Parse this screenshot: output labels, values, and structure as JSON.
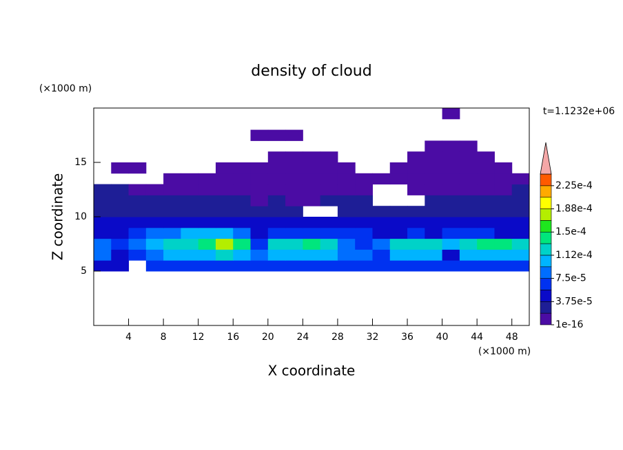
{
  "chart_data": {
    "type": "contour",
    "title": "density of cloud",
    "x_label": "X coordinate",
    "y_label": "Z coordinate",
    "x_unit": "(×1000 m)",
    "y_unit": "(×1000 m)",
    "time_label": "t=1.1232e+06",
    "xlim": [
      0,
      50
    ],
    "xticks": [
      4,
      8,
      12,
      16,
      20,
      24,
      28,
      32,
      36,
      40,
      44,
      48
    ],
    "ylim": [
      0,
      20
    ],
    "yticks": [
      5,
      10,
      15
    ],
    "x": [
      1,
      3,
      5,
      7,
      9,
      11,
      13,
      15,
      17,
      19,
      21,
      23,
      25,
      27,
      29,
      31,
      33,
      35,
      37,
      39,
      41,
      43,
      45,
      47,
      49
    ],
    "y": [
      4.5,
      5.5,
      6.5,
      7.5,
      8.5,
      9.5,
      10.5,
      11.5,
      12.5,
      13.5,
      14.5,
      15.5,
      16.5,
      17.5,
      18.5,
      19.5
    ],
    "z": [
      [
        null,
        null,
        null,
        null,
        null,
        null,
        null,
        null,
        null,
        null,
        null,
        null,
        null,
        null,
        null,
        null,
        null,
        null,
        null,
        null,
        null,
        null,
        null,
        null,
        null
      ],
      [
        5e-05,
        5e-05,
        null,
        6e-05,
        7e-05,
        7e-05,
        7e-05,
        7e-05,
        7e-05,
        7e-05,
        7e-05,
        7e-05,
        7e-05,
        7e-05,
        7e-05,
        6e-05,
        6e-05,
        7e-05,
        7e-05,
        6e-05,
        7e-05,
        7e-05,
        7e-05,
        7e-05,
        7e-05
      ],
      [
        8e-05,
        5e-05,
        6e-05,
        9e-05,
        0.0001,
        0.00011,
        0.00011,
        0.00012,
        0.00011,
        8e-05,
        0.0001,
        0.00011,
        0.00011,
        0.0001,
        9e-05,
        8e-05,
        7e-05,
        0.0001,
        0.00011,
        0.0001,
        5e-05,
        0.0001,
        0.00011,
        0.00011,
        0.00011
      ],
      [
        9e-05,
        7e-05,
        9e-05,
        0.00011,
        0.00012,
        0.00013,
        0.00014,
        0.00017,
        0.00014,
        6e-05,
        0.00012,
        0.00013,
        0.00014,
        0.00012,
        8e-05,
        7e-05,
        8e-05,
        0.00012,
        0.00013,
        0.00012,
        0.00011,
        0.00013,
        0.00014,
        0.00014,
        0.00013
      ],
      [
        5e-05,
        5e-05,
        6e-05,
        8e-05,
        9e-05,
        0.0001,
        0.00011,
        0.0001,
        8e-05,
        5e-05,
        6e-05,
        7e-05,
        7e-05,
        6e-05,
        6e-05,
        6e-05,
        5e-05,
        5e-05,
        6e-05,
        5e-05,
        6e-05,
        6e-05,
        6e-05,
        5e-05,
        5e-05
      ],
      [
        4e-05,
        4e-05,
        4e-05,
        5e-05,
        5e-05,
        4e-05,
        5e-05,
        4e-05,
        4e-05,
        4e-05,
        4e-05,
        4e-05,
        4e-05,
        4e-05,
        4e-05,
        5e-05,
        4e-05,
        4e-05,
        4e-05,
        4e-05,
        4e-05,
        4e-05,
        4e-05,
        4e-05,
        4e-05
      ],
      [
        3e-05,
        3e-05,
        3e-05,
        3e-05,
        2e-05,
        3e-05,
        2e-05,
        3e-05,
        3e-05,
        2e-05,
        2e-05,
        3e-05,
        null,
        null,
        3e-05,
        3e-05,
        3e-05,
        3e-05,
        2e-05,
        2e-05,
        2e-05,
        3e-05,
        3e-05,
        3e-05,
        3e-05
      ],
      [
        2e-05,
        3e-05,
        2e-05,
        2e-05,
        2e-05,
        2e-05,
        2e-05,
        2e-05,
        2e-05,
        1e-05,
        2e-05,
        1e-05,
        1e-05,
        2e-05,
        2e-05,
        2e-05,
        null,
        null,
        null,
        2e-05,
        2e-05,
        2e-05,
        2e-05,
        3e-05,
        3e-05
      ],
      [
        2e-05,
        2e-05,
        1e-05,
        1e-05,
        1e-05,
        1e-05,
        1e-05,
        1e-05,
        1e-05,
        1e-05,
        1e-05,
        1e-05,
        1e-05,
        1e-05,
        1e-05,
        1e-05,
        null,
        null,
        1e-05,
        1e-05,
        1e-05,
        1e-05,
        1e-05,
        1e-05,
        2e-05
      ],
      [
        null,
        null,
        null,
        null,
        5e-06,
        5e-06,
        1e-05,
        1e-05,
        1e-05,
        1e-05,
        1e-05,
        1e-05,
        1e-05,
        1e-05,
        1e-05,
        5e-06,
        5e-06,
        5e-06,
        5e-06,
        1e-05,
        1e-05,
        1e-05,
        1e-05,
        5e-06,
        5e-06
      ],
      [
        null,
        5e-06,
        5e-06,
        null,
        null,
        null,
        null,
        5e-06,
        5e-06,
        5e-06,
        5e-06,
        5e-06,
        5e-06,
        5e-06,
        5e-06,
        null,
        null,
        5e-06,
        5e-06,
        5e-06,
        5e-06,
        5e-06,
        5e-06,
        5e-06,
        null
      ],
      [
        null,
        null,
        null,
        null,
        null,
        null,
        null,
        null,
        null,
        null,
        5e-06,
        5e-06,
        5e-06,
        5e-06,
        null,
        null,
        null,
        null,
        5e-06,
        5e-06,
        5e-06,
        5e-06,
        5e-06,
        null,
        null
      ],
      [
        null,
        null,
        null,
        null,
        null,
        null,
        null,
        null,
        null,
        null,
        null,
        null,
        null,
        null,
        null,
        null,
        null,
        null,
        null,
        5e-06,
        5e-06,
        5e-06,
        null,
        null,
        null
      ],
      [
        null,
        null,
        null,
        null,
        null,
        null,
        null,
        null,
        null,
        5e-06,
        5e-06,
        5e-06,
        null,
        null,
        null,
        null,
        null,
        null,
        null,
        null,
        null,
        null,
        null,
        null,
        null
      ],
      [
        null,
        null,
        null,
        null,
        null,
        null,
        null,
        null,
        null,
        null,
        null,
        null,
        null,
        null,
        null,
        null,
        null,
        null,
        null,
        null,
        null,
        null,
        null,
        null,
        null
      ],
      [
        null,
        null,
        null,
        null,
        null,
        null,
        null,
        null,
        null,
        null,
        null,
        null,
        null,
        null,
        null,
        null,
        null,
        null,
        null,
        null,
        5e-06,
        null,
        null,
        null,
        null
      ]
    ],
    "clim": [
      1e-16,
      0.00024375
    ],
    "colors": [
      "#4b0ca4",
      "#1e1e96",
      "#0a0ac8",
      "#0032f0",
      "#006eff",
      "#00b4ff",
      "#00d2c8",
      "#00e67d",
      "#1ee61e",
      "#b4ee00",
      "#ffff00",
      "#ffaa00",
      "#ff5a00"
    ],
    "extend_color": "#f4a7a7",
    "cticks": [
      {
        "value": 1e-16,
        "label": "1e-16"
      },
      {
        "value": 3.75e-05,
        "label": "3.75e-5"
      },
      {
        "value": 7.5e-05,
        "label": "7.5e-5"
      },
      {
        "value": 0.0001125,
        "label": "1.12e-4"
      },
      {
        "value": 0.00015,
        "label": "1.5e-4"
      },
      {
        "value": 0.0001875,
        "label": "1.88e-4"
      },
      {
        "value": 0.000225,
        "label": "2.25e-4"
      }
    ]
  }
}
